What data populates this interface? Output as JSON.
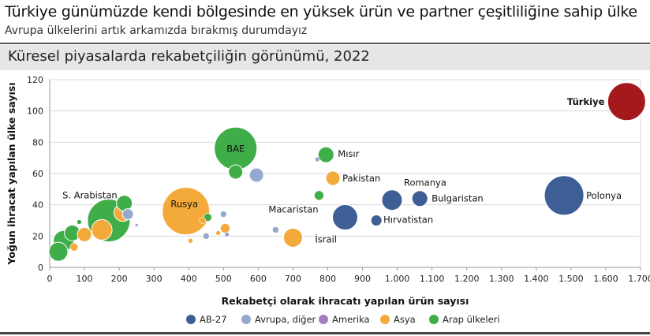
{
  "header": {
    "title": "Türkiye günümüzde kendi bölgesinde en yüksek ürün ve partner çeşitliliğine sahip ülke",
    "subtitle": "Avrupa ülkelerini artık arkamızda bırakmış durumdayız",
    "panel_title": "Küresel piyasalarda rekabetçiliğin görünümü, 2022"
  },
  "chart_data": {
    "type": "scatter",
    "xlabel": "Rekabetçi olarak ihracatı yapılan ürün sayısı",
    "ylabel": "Yoğun ihracat yapılan ülke sayısı",
    "xlim": [
      0,
      1700
    ],
    "ylim": [
      0,
      120
    ],
    "x_ticks": [
      "0",
      "100",
      "200",
      "300",
      "400",
      "500",
      "600",
      "700",
      "800",
      "900",
      "1.000",
      "1.100",
      "1.200",
      "1.300",
      "1.400",
      "1.500",
      "1.600",
      "1.700"
    ],
    "y_ticks": [
      "0",
      "20",
      "40",
      "60",
      "80",
      "100",
      "120"
    ],
    "grid": true,
    "legend_position": "bottom",
    "colors": {
      "AB-27": "#3e5e96",
      "Avrupa, diğer": "#94a9ce",
      "Amerika": "#a57dc0",
      "Asya": "#f4aa3a",
      "Arap ülkeleri": "#3fae49",
      "Türkiye": "#a3191c"
    },
    "legend": [
      {
        "name": "AB-27",
        "key": "AB-27"
      },
      {
        "name": "Avrupa, diğer",
        "key": "Avrupa, diğer"
      },
      {
        "name": "Amerika",
        "key": "Amerika"
      },
      {
        "name": "Asya",
        "key": "Asya"
      },
      {
        "name": "Arap ülkeleri",
        "key": "Arap ülkeleri"
      }
    ],
    "points": [
      {
        "x": 1660,
        "y": 106,
        "size": 24,
        "group": "Türkiye",
        "label": "Türkiye"
      },
      {
        "x": 1480,
        "y": 46,
        "size": 25,
        "group": "AB-27",
        "label": "Polonya"
      },
      {
        "x": 985,
        "y": 43,
        "size": 13,
        "group": "AB-27",
        "label": "Romanya"
      },
      {
        "x": 1065,
        "y": 44,
        "size": 10,
        "group": "AB-27",
        "label": "Bulgaristan"
      },
      {
        "x": 850,
        "y": 32,
        "size": 16,
        "group": "AB-27",
        "label": "Macaristan"
      },
      {
        "x": 940,
        "y": 30,
        "size": 7,
        "group": "AB-27",
        "label": "Hırvatistan"
      },
      {
        "x": 795,
        "y": 72,
        "size": 10,
        "group": "Arap ülkeleri",
        "label": "Mısır"
      },
      {
        "x": 815,
        "y": 57,
        "size": 9,
        "group": "Asya",
        "label": "Pakistan"
      },
      {
        "x": 700,
        "y": 19,
        "size": 12,
        "group": "Asya",
        "label": "İsrail"
      },
      {
        "x": 535,
        "y": 76,
        "size": 27,
        "group": "Arap ülkeleri",
        "label": "BAE"
      },
      {
        "x": 392,
        "y": 36,
        "size": 30,
        "group": "Asya",
        "label": "Rusya"
      },
      {
        "x": 170,
        "y": 30,
        "size": 27,
        "group": "Arap ülkeleri",
        "label": "S. Arabistan"
      },
      {
        "x": 535,
        "y": 61,
        "size": 9,
        "group": "Arap ülkeleri"
      },
      {
        "x": 595,
        "y": 59,
        "size": 9,
        "group": "Avrupa, diğer"
      },
      {
        "x": 775,
        "y": 46,
        "size": 6,
        "group": "Arap ülkeleri"
      },
      {
        "x": 770,
        "y": 69,
        "size": 3,
        "group": "Avrupa, diğer"
      },
      {
        "x": 650,
        "y": 24,
        "size": 4,
        "group": "Avrupa, diğer"
      },
      {
        "x": 215,
        "y": 41,
        "size": 10,
        "group": "Arap ülkeleri"
      },
      {
        "x": 210,
        "y": 35,
        "size": 11,
        "group": "Asya"
      },
      {
        "x": 225,
        "y": 34,
        "size": 7,
        "group": "Avrupa, diğer"
      },
      {
        "x": 150,
        "y": 24,
        "size": 13,
        "group": "Asya"
      },
      {
        "x": 100,
        "y": 21,
        "size": 9,
        "group": "Asya"
      },
      {
        "x": 65,
        "y": 22,
        "size": 10,
        "group": "Arap ülkeleri"
      },
      {
        "x": 40,
        "y": 17,
        "size": 13,
        "group": "Arap ülkeleri"
      },
      {
        "x": 25,
        "y": 10,
        "size": 12,
        "group": "Arap ülkeleri"
      },
      {
        "x": 70,
        "y": 13,
        "size": 5,
        "group": "Asya"
      },
      {
        "x": 85,
        "y": 29,
        "size": 3,
        "group": "Arap ülkeleri"
      },
      {
        "x": 455,
        "y": 32,
        "size": 5,
        "group": "Arap ülkeleri"
      },
      {
        "x": 500,
        "y": 34,
        "size": 4,
        "group": "Avrupa, diğer"
      },
      {
        "x": 440,
        "y": 30,
        "size": 4,
        "group": "Asya"
      },
      {
        "x": 505,
        "y": 25,
        "size": 6,
        "group": "Asya"
      },
      {
        "x": 450,
        "y": 20,
        "size": 4,
        "group": "Avrupa, diğer"
      },
      {
        "x": 510,
        "y": 21,
        "size": 3,
        "group": "Avrupa, diğer"
      },
      {
        "x": 405,
        "y": 17,
        "size": 3,
        "group": "Asya"
      },
      {
        "x": 485,
        "y": 22,
        "size": 3,
        "group": "Asya"
      },
      {
        "x": 250,
        "y": 27,
        "size": 2,
        "group": "Avrupa, diğer"
      }
    ]
  }
}
